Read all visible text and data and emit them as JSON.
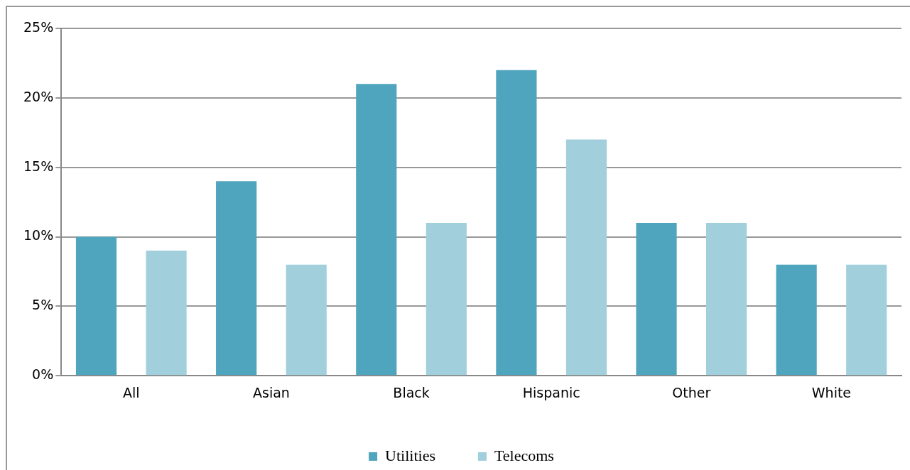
{
  "chart_data": {
    "type": "bar",
    "categories": [
      "All",
      "Asian",
      "Black",
      "Hispanic",
      "Other",
      "White"
    ],
    "series": [
      {
        "name": "Utilities",
        "color": "#4fa5bd",
        "values": [
          10,
          14,
          21,
          22,
          11,
          8
        ]
      },
      {
        "name": "Telecoms",
        "color": "#a2cfdc",
        "values": [
          9,
          8,
          11,
          17,
          11,
          8
        ]
      }
    ],
    "ylim": [
      0,
      25
    ],
    "yticks": [
      {
        "value": 0,
        "label": "0%"
      },
      {
        "value": 5,
        "label": "5%"
      },
      {
        "value": 10,
        "label": "10%"
      },
      {
        "value": 15,
        "label": "15%"
      },
      {
        "value": 20,
        "label": "20%"
      },
      {
        "value": 25,
        "label": "25%"
      }
    ],
    "grid": "y",
    "legend": "bottom"
  }
}
